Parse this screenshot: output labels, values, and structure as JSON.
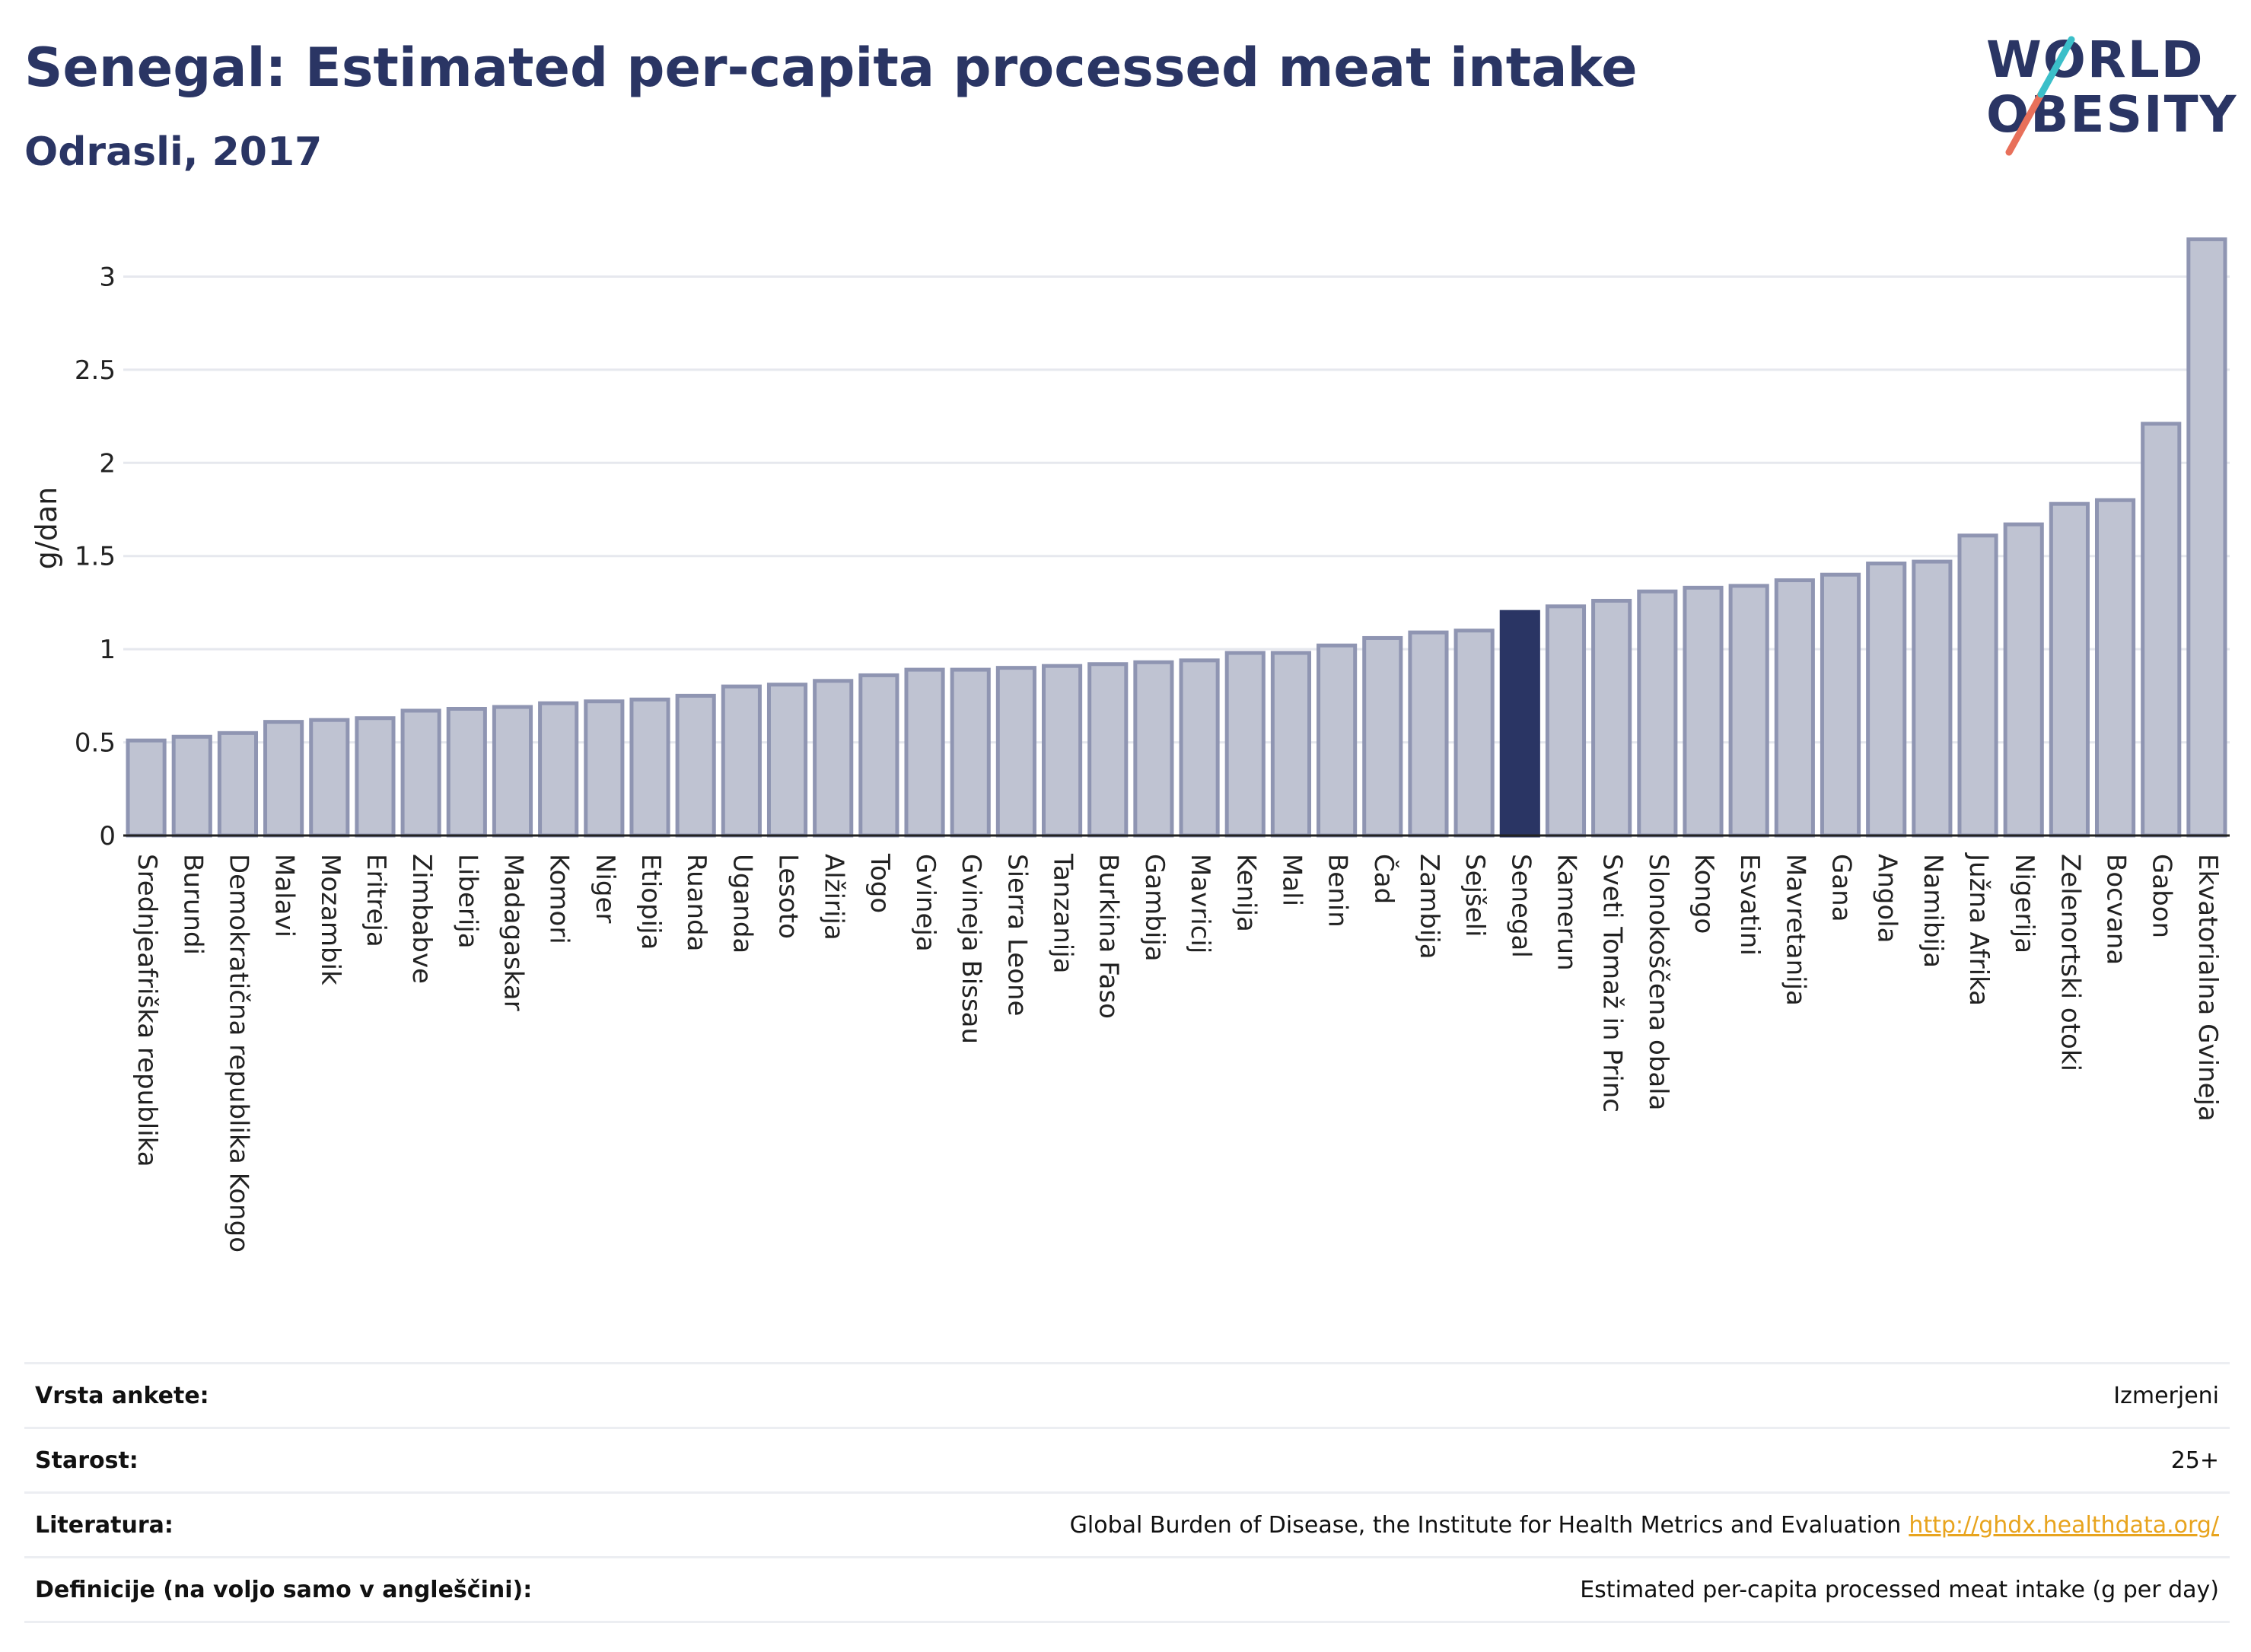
{
  "header": {
    "title": "Senegal: Estimated per-capita processed meat intake",
    "subtitle": "Odrasli, 2017"
  },
  "logo": {
    "line1": "WORLD",
    "line2": "OBESITY",
    "colors": {
      "text": "#2a3564",
      "slash_top": "#3bbfc9",
      "slash_bottom": "#e8705a"
    }
  },
  "colors": {
    "bar": "#bfc3d2",
    "bar_border": "#8f95b2",
    "highlight": "#2a3564",
    "grid": "#e6e8ee",
    "axis": "#222222"
  },
  "chart_data": {
    "type": "bar",
    "ylabel": "g/dan",
    "ylim": [
      0,
      3.3
    ],
    "yticks": [
      0,
      0.5,
      1,
      1.5,
      2,
      2.5,
      3
    ],
    "grid": true,
    "highlight": "Senegal",
    "categories": [
      "Srednjeafriška republika",
      "Burundi",
      "Demokratična republika Kongo",
      "Malavi",
      "Mozambik",
      "Eritreja",
      "Zimbabve",
      "Liberija",
      "Madagaskar",
      "Komori",
      "Niger",
      "Etiopija",
      "Ruanda",
      "Uganda",
      "Lesoto",
      "Alžirija",
      "Togo",
      "Gvineja",
      "Gvineja Bissau",
      "Sierra Leone",
      "Tanzanija",
      "Burkina Faso",
      "Gambija",
      "Mavricij",
      "Kenija",
      "Mali",
      "Benin",
      "Čad",
      "Zambija",
      "Sejšeli",
      "Senegal",
      "Kamerun",
      "Sveti Tomaž in Princ",
      "Slonokoščena obala",
      "Kongo",
      "Esvatini",
      "Mavretanija",
      "Gana",
      "Angola",
      "Namibija",
      "Južna Afrika",
      "Nigerija",
      "Zelenortski otoki",
      "Bocvana",
      "Gabon",
      "Ekvatorialna Gvineja"
    ],
    "values": [
      0.51,
      0.53,
      0.55,
      0.61,
      0.62,
      0.63,
      0.67,
      0.68,
      0.69,
      0.71,
      0.72,
      0.73,
      0.75,
      0.8,
      0.81,
      0.83,
      0.86,
      0.89,
      0.89,
      0.9,
      0.91,
      0.92,
      0.93,
      0.94,
      0.98,
      0.98,
      1.02,
      1.06,
      1.09,
      1.1,
      1.2,
      1.23,
      1.26,
      1.31,
      1.33,
      1.34,
      1.37,
      1.4,
      1.46,
      1.47,
      1.61,
      1.67,
      1.78,
      1.8,
      2.21,
      3.2
    ]
  },
  "info": [
    {
      "key": "Vrsta ankete:",
      "value": "Izmerjeni"
    },
    {
      "key": "Starost:",
      "value": "25+"
    },
    {
      "key": "Literatura:",
      "value": "Global Burden of Disease, the Institute for Health Metrics and Evaluation",
      "link": "http://ghdx.healthdata.org/"
    },
    {
      "key": "Definicije (na voljo samo v angleščini):",
      "value": "Estimated per-capita processed meat intake (g per day)"
    }
  ]
}
